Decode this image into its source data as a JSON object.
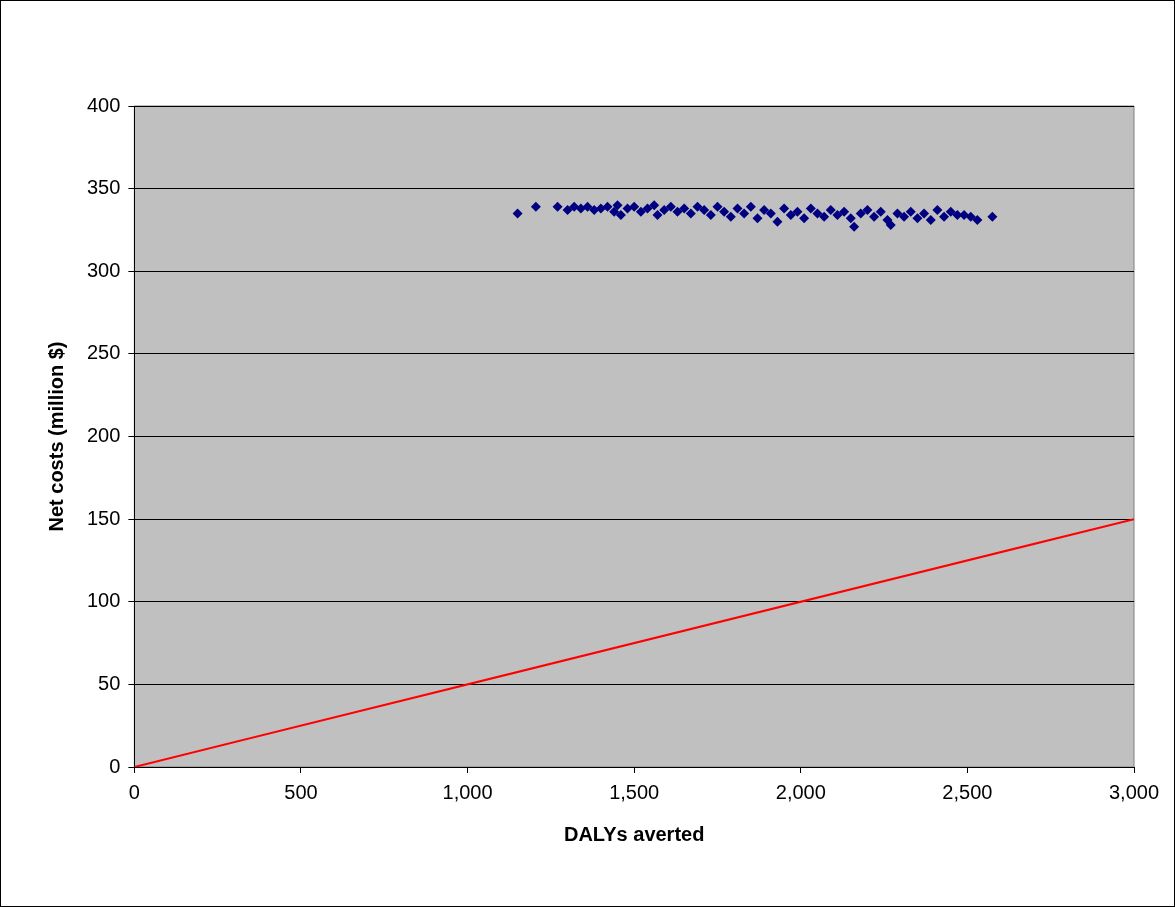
{
  "chart_data": {
    "type": "scatter",
    "xlabel": "DALYs averted",
    "ylabel": "Net costs (million $)",
    "xlim": [
      0,
      3000
    ],
    "ylim": [
      0,
      400
    ],
    "xticks": [
      0,
      500,
      {
        "value": 1000,
        "label": "1,000"
      },
      {
        "value": 1500,
        "label": "1,500"
      },
      {
        "value": 2000,
        "label": "2,000"
      },
      {
        "value": 2500,
        "label": "2,500"
      },
      {
        "value": 3000,
        "label": "3,000"
      }
    ],
    "yticks": [
      0,
      50,
      100,
      150,
      200,
      250,
      300,
      350,
      400
    ],
    "grid": "y",
    "legend": false,
    "marker": "diamond",
    "series": [
      {
        "color": "#000080",
        "x": [
          1150,
          1205,
          1270,
          1300,
          1320,
          1340,
          1360,
          1380,
          1400,
          1420,
          1440,
          1450,
          1460,
          1480,
          1500,
          1520,
          1540,
          1560,
          1570,
          1590,
          1610,
          1630,
          1650,
          1670,
          1690,
          1710,
          1730,
          1750,
          1770,
          1790,
          1810,
          1830,
          1850,
          1870,
          1890,
          1910,
          1930,
          1950,
          1970,
          1990,
          2010,
          2030,
          2050,
          2070,
          2090,
          2110,
          2130,
          2150,
          2160,
          2180,
          2200,
          2220,
          2240,
          2260,
          2270,
          2290,
          2310,
          2330,
          2350,
          2370,
          2390,
          2410,
          2430,
          2450,
          2470,
          2490,
          2510,
          2530,
          2575
        ],
        "values": [
          335,
          339,
          339,
          337,
          339,
          338,
          339,
          337,
          338,
          339,
          336,
          340,
          334,
          338,
          339,
          336,
          338,
          340,
          334,
          337,
          339,
          336,
          338,
          335,
          339,
          337,
          334,
          339,
          336,
          333,
          338,
          335,
          339,
          332,
          337,
          335,
          330,
          338,
          334,
          336,
          332,
          338,
          335,
          333,
          337,
          334,
          336,
          332,
          327,
          335,
          337,
          333,
          336,
          331,
          328,
          335,
          333,
          336,
          332,
          335,
          331,
          337,
          333,
          336,
          334,
          334,
          333,
          331,
          333
        ]
      },
      {
        "type": "line",
        "color": "#ff0000",
        "marker": "none",
        "line_style": "solid",
        "x": [
          0,
          3000
        ],
        "values": [
          0,
          150
        ]
      }
    ]
  }
}
